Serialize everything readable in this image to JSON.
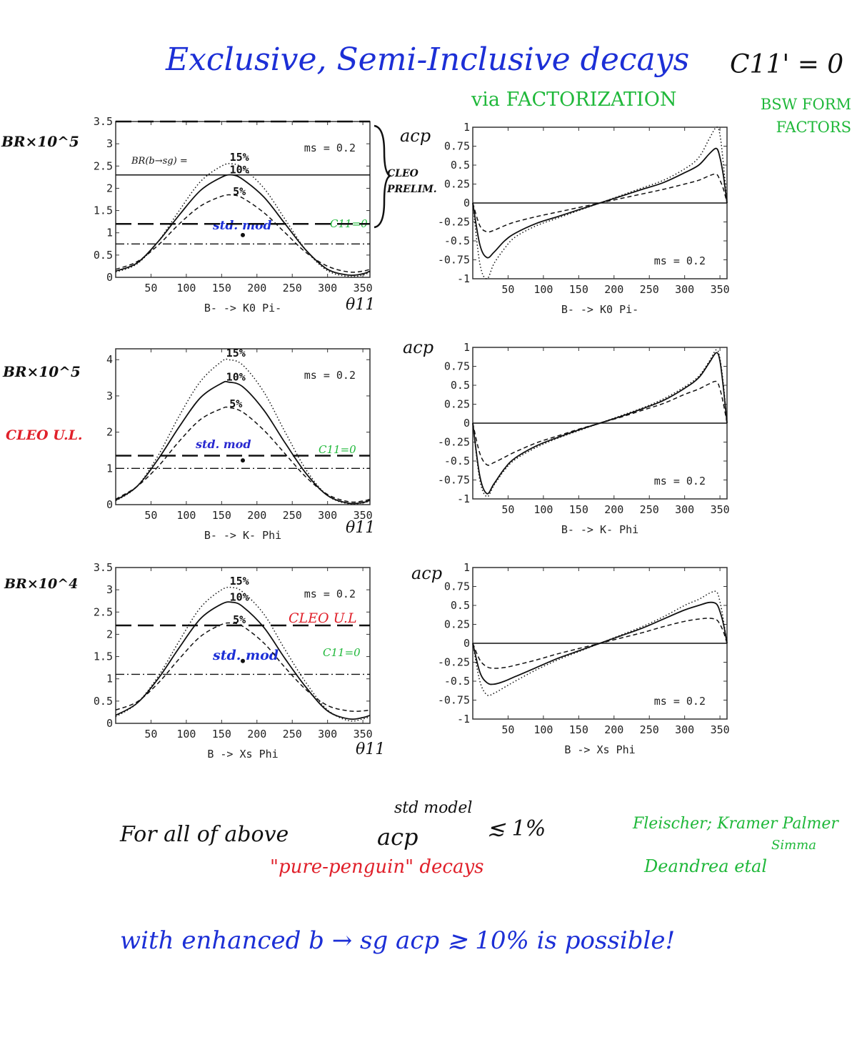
{
  "title": {
    "main": "Exclusive, Semi-Inclusive decays",
    "condition": "C11' = 0",
    "method": "via FACTORIZATION",
    "formfactors": "BSW FORM FACTORS"
  },
  "left_ylabels": [
    "BR×10^5",
    "BR×10^5",
    "BR×10^4"
  ],
  "acp_label": "acp",
  "theta_label": "θ11",
  "notes": {
    "br_bsg": "BR(b→sg) =",
    "cleo_prelim": "CLEO PRELIM.",
    "cleo_ul": "CLEO U.L.",
    "cleo_ul_red": "CLEO U.L",
    "c11_zero": "C11=0",
    "std_mod": "std. mod"
  },
  "bottom": {
    "line1": "For all of above",
    "acp": "acp",
    "std_model": "std model",
    "approx": "≲ 1%",
    "pure_penguin": "\"pure-penguin\" decays",
    "refs1": "Fleischer; Kramer Palmer",
    "refs2": "Simma",
    "refs3": "Deandrea etal",
    "line2": "with enhanced b → sg    acp ≳ 10% is possible!"
  },
  "chart_data": [
    {
      "id": "br_k0pi",
      "type": "line",
      "xlabel": "B- -> K0 Pi-",
      "ylabel": "BR×10^5",
      "annotation": "ms = 0.2",
      "xlim": [
        0,
        360
      ],
      "ylim": [
        0,
        3.5
      ],
      "xticks": [
        50,
        100,
        150,
        200,
        250,
        300,
        350
      ],
      "yticks": [
        0,
        0.5,
        1,
        1.5,
        2,
        2.5,
        3,
        3.5
      ],
      "ytick_labels": [
        "0",
        "0.5",
        "1",
        "1.5",
        "2",
        "2.5",
        "3",
        "3.5"
      ],
      "x": [
        0,
        30,
        60,
        90,
        120,
        150,
        165,
        180,
        210,
        240,
        270,
        300,
        330,
        350,
        360
      ],
      "series": [
        {
          "name": "15%",
          "style": "dotted",
          "values": [
            0.12,
            0.3,
            0.8,
            1.5,
            2.15,
            2.5,
            2.55,
            2.45,
            2.0,
            1.3,
            0.6,
            0.15,
            0.02,
            0.05,
            0.12
          ]
        },
        {
          "name": "10%",
          "style": "solid",
          "values": [
            0.14,
            0.32,
            0.8,
            1.4,
            1.95,
            2.25,
            2.3,
            2.2,
            1.8,
            1.2,
            0.6,
            0.18,
            0.05,
            0.08,
            0.14
          ]
        },
        {
          "name": "5%",
          "style": "dashed",
          "values": [
            0.18,
            0.35,
            0.72,
            1.2,
            1.6,
            1.82,
            1.85,
            1.78,
            1.45,
            1.0,
            0.55,
            0.25,
            0.12,
            0.14,
            0.18
          ]
        }
      ],
      "hlines": [
        {
          "y": 3.5,
          "style": "longdash"
        },
        {
          "y": 2.3,
          "style": "solid"
        },
        {
          "y": 1.2,
          "style": "longdash"
        },
        {
          "y": 0.75,
          "style": "dashdot"
        }
      ],
      "curve_labels": [
        "15%",
        "10%",
        "5%"
      ],
      "point": {
        "x": 180,
        "y": 0.95
      }
    },
    {
      "id": "acp_k0pi",
      "type": "line",
      "xlabel": "B- -> K0 Pi-",
      "annotation": "ms = 0.2",
      "xlim": [
        0,
        360
      ],
      "ylim": [
        -1,
        1
      ],
      "xticks": [
        50,
        100,
        150,
        200,
        250,
        300,
        350
      ],
      "yticks": [
        -1,
        -0.75,
        -0.5,
        -0.25,
        0,
        0.25,
        0.5,
        0.75,
        1
      ],
      "ytick_labels": [
        "-1",
        "-0.75",
        "-0.5",
        "-0.25",
        "0",
        "0.25",
        "0.5",
        "0.75",
        "1"
      ],
      "x": [
        0,
        10,
        20,
        30,
        45,
        60,
        90,
        120,
        150,
        180,
        210,
        240,
        270,
        300,
        320,
        335,
        345,
        350,
        355,
        360
      ],
      "series": [
        {
          "name": "15%",
          "style": "dotted",
          "values": [
            0.0,
            -0.8,
            -1.0,
            -0.8,
            -0.6,
            -0.45,
            -0.3,
            -0.2,
            -0.1,
            0.0,
            0.1,
            0.2,
            0.3,
            0.45,
            0.6,
            0.85,
            1.0,
            0.9,
            0.5,
            0.0
          ]
        },
        {
          "name": "10%",
          "style": "solid",
          "values": [
            0.0,
            -0.55,
            -0.72,
            -0.65,
            -0.5,
            -0.4,
            -0.27,
            -0.18,
            -0.09,
            0.0,
            0.09,
            0.18,
            0.27,
            0.4,
            0.5,
            0.65,
            0.72,
            0.6,
            0.35,
            0.0
          ]
        },
        {
          "name": "5%",
          "style": "dashed",
          "values": [
            0.0,
            -0.3,
            -0.38,
            -0.36,
            -0.3,
            -0.25,
            -0.18,
            -0.12,
            -0.06,
            0.0,
            0.06,
            0.12,
            0.18,
            0.25,
            0.3,
            0.36,
            0.38,
            0.3,
            0.18,
            0.0
          ]
        }
      ],
      "hlines": [
        {
          "y": 0,
          "style": "solid"
        }
      ]
    },
    {
      "id": "br_kphi",
      "type": "line",
      "xlabel": "B- -> K- Phi",
      "ylabel": "BR×10^5",
      "annotation": "ms = 0.2",
      "xlim": [
        0,
        360
      ],
      "ylim": [
        0,
        4.3
      ],
      "xticks": [
        50,
        100,
        150,
        200,
        250,
        300,
        350
      ],
      "yticks": [
        0,
        1,
        2,
        3,
        4
      ],
      "ytick_labels": [
        "0",
        "1",
        "2",
        "3",
        "4"
      ],
      "x": [
        0,
        30,
        60,
        90,
        120,
        150,
        160,
        180,
        210,
        240,
        270,
        300,
        330,
        350,
        360
      ],
      "series": [
        {
          "name": "15%",
          "style": "dotted",
          "values": [
            0.1,
            0.5,
            1.35,
            2.45,
            3.4,
            3.95,
            4.0,
            3.85,
            3.1,
            2.0,
            0.95,
            0.25,
            0.02,
            0.05,
            0.1
          ]
        },
        {
          "name": "10%",
          "style": "solid",
          "values": [
            0.12,
            0.5,
            1.25,
            2.15,
            2.95,
            3.35,
            3.38,
            3.25,
            2.6,
            1.7,
            0.85,
            0.25,
            0.04,
            0.06,
            0.12
          ]
        },
        {
          "name": "5%",
          "style": "dashed",
          "values": [
            0.15,
            0.5,
            1.05,
            1.75,
            2.35,
            2.65,
            2.68,
            2.55,
            2.05,
            1.4,
            0.75,
            0.28,
            0.08,
            0.1,
            0.15
          ]
        }
      ],
      "hlines": [
        {
          "y": 1.35,
          "style": "longdash"
        },
        {
          "y": 1.0,
          "style": "dashdot"
        }
      ],
      "curve_labels": [
        "15%",
        "10%",
        "5%"
      ],
      "point": {
        "x": 180,
        "y": 1.22
      }
    },
    {
      "id": "acp_kphi",
      "type": "line",
      "xlabel": "B- -> K- Phi",
      "annotation": "ms = 0.2",
      "xlim": [
        0,
        360
      ],
      "ylim": [
        -1,
        1
      ],
      "xticks": [
        50,
        100,
        150,
        200,
        250,
        300,
        350
      ],
      "yticks": [
        -1,
        -0.75,
        -0.5,
        -0.25,
        0,
        0.25,
        0.5,
        0.75,
        1
      ],
      "ytick_labels": [
        "-1",
        "-0.75",
        "-0.5",
        "-0.25",
        "0",
        "0.25",
        "0.5",
        "0.75",
        "1"
      ],
      "x": [
        0,
        10,
        20,
        30,
        45,
        60,
        90,
        120,
        150,
        180,
        210,
        240,
        270,
        300,
        320,
        335,
        345,
        350,
        355,
        360
      ],
      "series": [
        {
          "name": "15%",
          "style": "dotted",
          "values": [
            0.0,
            -0.75,
            -0.97,
            -0.82,
            -0.62,
            -0.48,
            -0.32,
            -0.2,
            -0.1,
            0.0,
            0.1,
            0.2,
            0.32,
            0.48,
            0.62,
            0.82,
            0.97,
            0.85,
            0.5,
            0.0
          ]
        },
        {
          "name": "10%",
          "style": "solid",
          "values": [
            0.0,
            -0.7,
            -0.93,
            -0.8,
            -0.6,
            -0.46,
            -0.3,
            -0.19,
            -0.09,
            0.0,
            0.09,
            0.19,
            0.3,
            0.46,
            0.6,
            0.8,
            0.93,
            0.82,
            0.45,
            0.0
          ]
        },
        {
          "name": "5%",
          "style": "dashed",
          "values": [
            0.0,
            -0.4,
            -0.55,
            -0.52,
            -0.45,
            -0.38,
            -0.26,
            -0.17,
            -0.08,
            0.0,
            0.08,
            0.17,
            0.26,
            0.38,
            0.45,
            0.52,
            0.55,
            0.45,
            0.25,
            0.0
          ]
        }
      ],
      "hlines": [
        {
          "y": 0,
          "style": "solid"
        }
      ]
    },
    {
      "id": "br_xsphi",
      "type": "line",
      "xlabel": "B -> Xs Phi",
      "ylabel": "BR×10^4",
      "annotation": "ms = 0.2",
      "xlim": [
        0,
        360
      ],
      "ylim": [
        0,
        3.5
      ],
      "xticks": [
        50,
        100,
        150,
        200,
        250,
        300,
        350
      ],
      "yticks": [
        0,
        0.5,
        1,
        1.5,
        2,
        2.5,
        3,
        3.5
      ],
      "ytick_labels": [
        "0",
        "0.5",
        "1",
        "1.5",
        "2",
        "2.5",
        "3",
        "3.5"
      ],
      "x": [
        0,
        30,
        60,
        90,
        120,
        150,
        165,
        180,
        210,
        240,
        270,
        300,
        330,
        350,
        360
      ],
      "series": [
        {
          "name": "15%",
          "style": "dotted",
          "values": [
            0.15,
            0.45,
            1.05,
            1.85,
            2.6,
            3.0,
            3.05,
            2.95,
            2.45,
            1.65,
            0.9,
            0.3,
            0.06,
            0.1,
            0.15
          ]
        },
        {
          "name": "10%",
          "style": "solid",
          "values": [
            0.18,
            0.45,
            1.0,
            1.7,
            2.35,
            2.68,
            2.72,
            2.62,
            2.15,
            1.45,
            0.8,
            0.28,
            0.1,
            0.13,
            0.18
          ]
        },
        {
          "name": "5%",
          "style": "dashed",
          "values": [
            0.3,
            0.48,
            0.9,
            1.45,
            1.95,
            2.22,
            2.25,
            2.18,
            1.8,
            1.25,
            0.75,
            0.4,
            0.28,
            0.28,
            0.3
          ]
        }
      ],
      "hlines": [
        {
          "y": 2.2,
          "style": "longdash"
        },
        {
          "y": 1.1,
          "style": "dashdot"
        }
      ],
      "curve_labels": [
        "15%",
        "10%",
        "5%"
      ],
      "point": {
        "x": 180,
        "y": 1.4
      }
    },
    {
      "id": "acp_xsphi",
      "type": "line",
      "xlabel": "B -> Xs Phi",
      "annotation": "ms = 0.2",
      "xlim": [
        0,
        360
      ],
      "ylim": [
        -1,
        1
      ],
      "xticks": [
        50,
        100,
        150,
        200,
        250,
        300,
        350
      ],
      "yticks": [
        -1,
        -0.75,
        -0.5,
        -0.25,
        0,
        0.25,
        0.5,
        0.75,
        1
      ],
      "ytick_labels": [
        "-1",
        "-0.75",
        "-0.5",
        "-0.25",
        "0",
        "0.25",
        "0.5",
        "0.75",
        "1"
      ],
      "x": [
        0,
        10,
        20,
        30,
        45,
        60,
        90,
        120,
        150,
        180,
        210,
        240,
        270,
        300,
        320,
        335,
        345,
        350,
        355,
        360
      ],
      "series": [
        {
          "name": "15%",
          "style": "dotted",
          "values": [
            0.0,
            -0.5,
            -0.68,
            -0.66,
            -0.58,
            -0.5,
            -0.35,
            -0.22,
            -0.11,
            0.0,
            0.11,
            0.22,
            0.35,
            0.5,
            0.58,
            0.66,
            0.68,
            0.55,
            0.3,
            0.0
          ]
        },
        {
          "name": "10%",
          "style": "solid",
          "values": [
            0.0,
            -0.38,
            -0.52,
            -0.54,
            -0.5,
            -0.44,
            -0.32,
            -0.2,
            -0.1,
            0.0,
            0.1,
            0.2,
            0.32,
            0.44,
            0.5,
            0.54,
            0.52,
            0.42,
            0.25,
            0.0
          ]
        },
        {
          "name": "5%",
          "style": "dashed",
          "values": [
            0.0,
            -0.22,
            -0.31,
            -0.33,
            -0.32,
            -0.29,
            -0.22,
            -0.14,
            -0.07,
            0.0,
            0.07,
            0.14,
            0.22,
            0.29,
            0.32,
            0.33,
            0.31,
            0.25,
            0.15,
            0.0
          ]
        }
      ],
      "hlines": [
        {
          "y": 0,
          "style": "solid"
        }
      ]
    }
  ]
}
